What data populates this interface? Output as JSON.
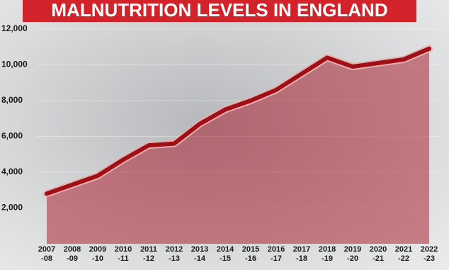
{
  "chart_data": {
    "type": "area-line",
    "title": "MALNUTRITION LEVELS IN ENGLAND",
    "categories": [
      "2007\n-08",
      "2008\n-09",
      "2009\n-10",
      "2010\n-11",
      "2011\n-12",
      "2012\n-13",
      "2013\n-14",
      "2014\n-15",
      "2015\n-16",
      "2016\n-17",
      "2017\n-18",
      "2018\n-19",
      "2019\n-20",
      "2020\n-21",
      "2021\n-22",
      "2022\n-23"
    ],
    "values": [
      2800,
      3300,
      3800,
      4700,
      5500,
      5600,
      6700,
      7500,
      8000,
      8600,
      9500,
      10400,
      9900,
      10100,
      10300,
      10900
    ],
    "color": "#9e1016",
    "ylim": [
      0,
      12000
    ],
    "yticks": [
      {
        "value": 2000,
        "label": "2,000"
      },
      {
        "value": 4000,
        "label": "4,000"
      },
      {
        "value": 6000,
        "label": "6,000"
      },
      {
        "value": 8000,
        "label": "8,000"
      },
      {
        "value": 10000,
        "label": "10,000"
      },
      {
        "value": 12000,
        "label": "12,000"
      }
    ],
    "grid": true
  }
}
